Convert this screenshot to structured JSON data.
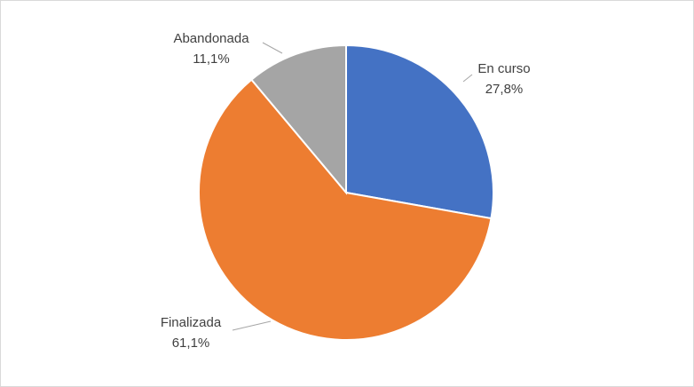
{
  "chart_data": {
    "type": "pie",
    "categories": [
      "En curso",
      "Finalizada",
      "Abandonada"
    ],
    "values": [
      27.8,
      61.1,
      11.1
    ],
    "value_labels": [
      "27,8%",
      "61,1%",
      "11,1%"
    ],
    "colors": [
      "#4472c4",
      "#ed7d31",
      "#a5a5a5"
    ]
  }
}
